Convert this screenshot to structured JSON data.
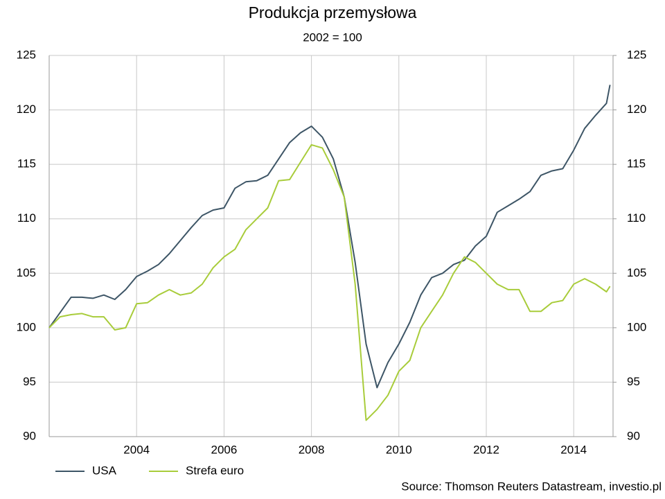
{
  "chart_data": {
    "type": "line",
    "title": "Produkcja przemysłowa",
    "subtitle": "2002 = 100",
    "source": "Source: Thomson Reuters Datastream, investio.pl",
    "x": [
      2002,
      2002.25,
      2002.5,
      2002.75,
      2003,
      2003.25,
      2003.5,
      2003.75,
      2004,
      2004.25,
      2004.5,
      2004.75,
      2005,
      2005.25,
      2005.5,
      2005.75,
      2006,
      2006.25,
      2006.5,
      2006.75,
      2007,
      2007.25,
      2007.5,
      2007.75,
      2008,
      2008.25,
      2008.5,
      2008.75,
      2009,
      2009.25,
      2009.5,
      2009.75,
      2010,
      2010.25,
      2010.5,
      2010.75,
      2011,
      2011.25,
      2011.5,
      2011.75,
      2012,
      2012.25,
      2012.5,
      2012.75,
      2013,
      2013.25,
      2013.5,
      2013.75,
      2014,
      2014.25,
      2014.5,
      2014.75,
      2014.83
    ],
    "series": [
      {
        "name": "USA",
        "color": "#3d5566",
        "values": [
          100,
          101.4,
          102.8,
          102.8,
          102.7,
          103.0,
          102.6,
          103.5,
          104.7,
          105.2,
          105.8,
          106.8,
          108.0,
          109.2,
          110.3,
          110.8,
          111.0,
          112.8,
          113.4,
          113.5,
          114.0,
          115.5,
          117.0,
          117.9,
          118.5,
          117.5,
          115.5,
          112.0,
          106.0,
          98.5,
          94.5,
          96.8,
          98.5,
          100.5,
          103.0,
          104.6,
          105.0,
          105.8,
          106.2,
          107.5,
          108.4,
          110.6,
          111.2,
          111.8,
          112.5,
          114.0,
          114.4,
          114.6,
          116.3,
          118.3,
          119.5,
          120.6,
          122.3
        ]
      },
      {
        "name": "Strefa euro",
        "color": "#a8cc3a",
        "values": [
          100,
          101,
          101.2,
          101.3,
          101.0,
          101.0,
          99.8,
          100.0,
          102.2,
          102.3,
          103.0,
          103.5,
          103.0,
          103.2,
          104.0,
          105.5,
          106.5,
          107.2,
          109.0,
          110.0,
          111.0,
          113.5,
          113.6,
          115.2,
          116.8,
          116.5,
          114.5,
          112.0,
          104.0,
          91.5,
          92.5,
          93.8,
          96.0,
          97.0,
          100.0,
          101.5,
          103.0,
          105.0,
          106.5,
          106.0,
          105.0,
          104.0,
          103.5,
          103.5,
          101.5,
          101.5,
          102.3,
          102.5,
          104.0,
          104.5,
          104.0,
          103.3,
          103.8
        ]
      }
    ],
    "xlim": [
      2002,
      2014.9
    ],
    "xticks": [
      2004,
      2006,
      2008,
      2010,
      2012,
      2014
    ],
    "ylim": [
      90,
      125
    ],
    "yticks": [
      90,
      95,
      100,
      105,
      110,
      115,
      120,
      125
    ],
    "y2lim": [
      90,
      125
    ],
    "y2ticks": [
      90,
      95,
      100,
      105,
      110,
      115,
      120,
      125
    ],
    "grid": true,
    "legend": "bottom-left"
  }
}
